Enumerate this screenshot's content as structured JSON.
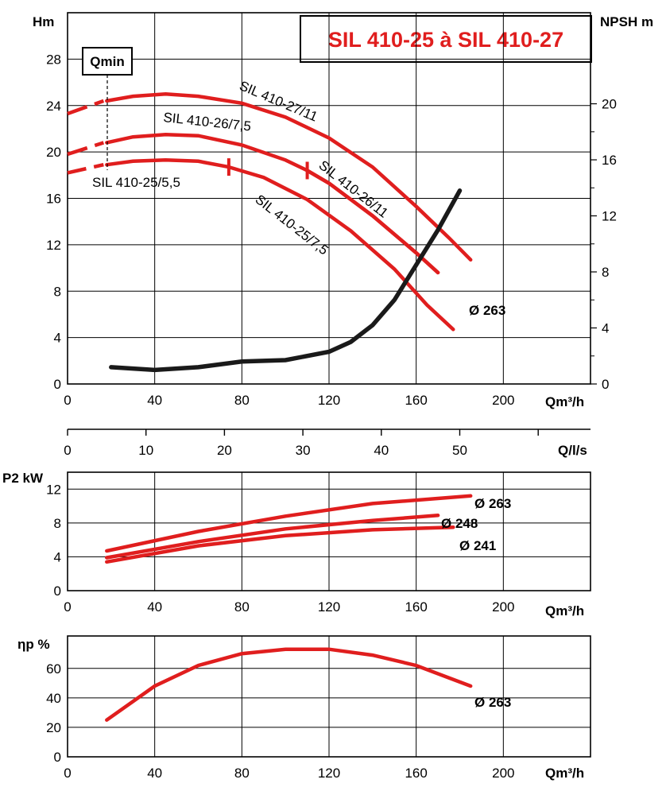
{
  "title": "SIL 410-25 à SIL 410-27",
  "colors": {
    "curve": "#e01e1e",
    "npsh": "#1a1a1a",
    "grid": "#000000"
  },
  "chart_data": [
    {
      "type": "line",
      "panel": "head",
      "xlabel": "Qm³/h",
      "ylabel": "Hm",
      "y2label": "NPSH m",
      "xlim": [
        0,
        240
      ],
      "ylim": [
        0,
        32
      ],
      "y2lim": [
        0,
        26.5
      ],
      "xticks": [
        "0",
        "40",
        "80",
        "120",
        "160",
        "200"
      ],
      "yticks": [
        "0",
        "4",
        "8",
        "12",
        "16",
        "20",
        "24",
        "28"
      ],
      "y2ticks": [
        "0",
        "4",
        "8",
        "12",
        "16",
        "20"
      ],
      "qmin_label": "Qmin",
      "qmin_x": 18,
      "secondary_axis": {
        "label": "Q/l/s",
        "ticks": [
          "0",
          "10",
          "20",
          "30",
          "40",
          "50"
        ]
      },
      "series": [
        {
          "name": "SIL 410-27/11",
          "x": [
            18,
            30,
            45,
            60,
            80,
            100,
            120,
            140,
            160,
            175,
            185
          ],
          "y": [
            24.4,
            24.8,
            25.0,
            24.8,
            24.2,
            23.0,
            21.2,
            18.7,
            15.3,
            12.6,
            10.7
          ],
          "dashed_before": 0,
          "dashed_y": 23.3
        },
        {
          "name": "SIL 410-26/7,5",
          "x": [
            18,
            30,
            45,
            60,
            80,
            100,
            110,
            120,
            140,
            160,
            170
          ],
          "y": [
            20.8,
            21.3,
            21.5,
            21.4,
            20.6,
            19.3,
            18.4,
            17.3,
            14.5,
            11.3,
            9.6
          ],
          "dashed_before": 0,
          "dashed_y": 19.8
        },
        {
          "name": "SIL 410-25/5,5",
          "x": [
            18,
            30,
            45,
            60,
            74
          ],
          "y": [
            18.9,
            19.2,
            19.3,
            19.2,
            18.7
          ]
        },
        {
          "name": "SIL 410-26/11",
          "x": [
            110,
            120,
            140,
            160,
            170
          ],
          "y": [
            18.4,
            17.3,
            14.5,
            11.3,
            9.6
          ]
        },
        {
          "name": "SIL 410-25/7,5",
          "x": [
            74,
            90,
            110,
            130,
            150,
            165,
            177
          ],
          "y": [
            18.7,
            17.8,
            15.9,
            13.2,
            9.9,
            6.8,
            4.7
          ],
          "dashed_y": 18.3
        },
        {
          "name": "Ø 263",
          "axis": "y2",
          "x": [
            20,
            40,
            60,
            80,
            100,
            120,
            130,
            140,
            150,
            160,
            170,
            180
          ],
          "y": [
            1.2,
            1.0,
            1.2,
            1.6,
            1.7,
            2.3,
            3.0,
            4.2,
            6.0,
            8.5,
            11.0,
            13.8
          ]
        }
      ],
      "markers": [
        {
          "x": 74,
          "y": 18.7
        },
        {
          "x": 110,
          "y": 18.4
        }
      ]
    },
    {
      "type": "line",
      "panel": "power",
      "xlabel": "Qm³/h",
      "ylabel": "P2 kW",
      "xlim": [
        0,
        240
      ],
      "ylim": [
        0,
        14
      ],
      "xticks": [
        "0",
        "40",
        "80",
        "120",
        "160",
        "200"
      ],
      "yticks": [
        "0",
        "4",
        "8",
        "12"
      ],
      "series": [
        {
          "name": "Ø 263",
          "x": [
            18,
            60,
            100,
            140,
            185
          ],
          "y": [
            4.7,
            7.0,
            8.8,
            10.3,
            11.2
          ]
        },
        {
          "name": "Ø 248",
          "x": [
            18,
            60,
            100,
            140,
            170
          ],
          "y": [
            3.9,
            5.8,
            7.3,
            8.3,
            8.9
          ]
        },
        {
          "name": "Ø 241",
          "x": [
            18,
            60,
            100,
            140,
            177
          ],
          "y": [
            3.4,
            5.3,
            6.5,
            7.2,
            7.5
          ]
        }
      ]
    },
    {
      "type": "line",
      "panel": "efficiency",
      "xlabel": "Qm³/h",
      "ylabel": "ηp %",
      "xlim": [
        0,
        240
      ],
      "ylim": [
        0,
        82
      ],
      "xticks": [
        "0",
        "40",
        "80",
        "120",
        "160",
        "200"
      ],
      "yticks": [
        "0",
        "20",
        "40",
        "60"
      ],
      "series": [
        {
          "name": "Ø 263",
          "x": [
            18,
            40,
            60,
            80,
            100,
            120,
            140,
            160,
            185
          ],
          "y": [
            25,
            48,
            62,
            70,
            73,
            73,
            69,
            62,
            48
          ]
        }
      ]
    }
  ]
}
